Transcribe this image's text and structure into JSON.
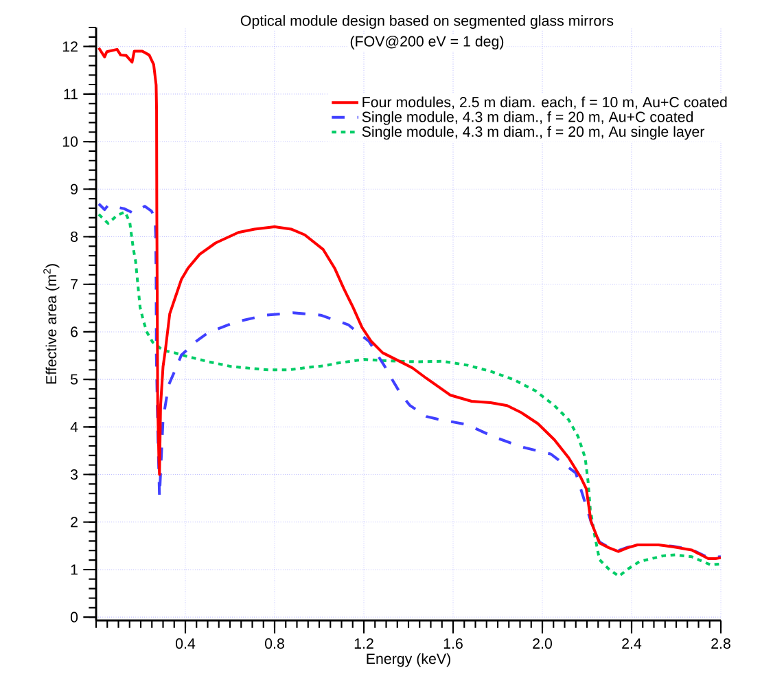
{
  "chart_data": {
    "type": "line",
    "title": "Optical module design based on segmented glass mirrors",
    "subtitle": "(FOV@200 eV = 1 deg)",
    "xlabel": "Energy (keV)",
    "ylabel": "Effective area (m$^{2}$)",
    "xlim": [
      0,
      2.8
    ],
    "ylim": [
      -0.07,
      12.4
    ],
    "xticks": [
      0.4,
      0.8,
      1.2,
      1.6,
      {
        "value": 2,
        "label": "2.0"
      },
      2.4,
      2.8
    ],
    "yticks": [
      0,
      1,
      2,
      3,
      4,
      5,
      6,
      7,
      8,
      9,
      10,
      11,
      12
    ],
    "grid": true,
    "legend": "top right",
    "series": [
      {
        "name": "Four modules, 2.5 m diam. each, f = 10 m,  Au+C coated",
        "color": "#ff0000",
        "line_style": "solid",
        "x": [
          0.012,
          0.038,
          0.048,
          0.094,
          0.11,
          0.135,
          0.161,
          0.171,
          0.207,
          0.238,
          0.258,
          0.269,
          0.271,
          0.272,
          0.274,
          0.276,
          0.281,
          0.284,
          0.289,
          0.3,
          0.31,
          0.33,
          0.382,
          0.412,
          0.464,
          0.536,
          0.638,
          0.71,
          0.8,
          0.874,
          0.935,
          1.018,
          1.069,
          1.11,
          1.151,
          1.192,
          1.233,
          1.284,
          1.356,
          1.418,
          1.481,
          1.587,
          1.683,
          1.768,
          1.842,
          1.906,
          1.98,
          2.054,
          2.118,
          2.171,
          2.197,
          2.218,
          2.256,
          2.298,
          2.341,
          2.383,
          2.426,
          2.521,
          2.585,
          2.67,
          2.744,
          2.776,
          2.8
        ],
        "values": [
          11.97,
          11.78,
          11.89,
          11.94,
          11.82,
          11.81,
          11.67,
          11.9,
          11.9,
          11.82,
          11.62,
          11.19,
          10.66,
          8.54,
          6.62,
          4.5,
          3.4,
          3.0,
          4.45,
          5.27,
          5.6,
          6.38,
          7.1,
          7.34,
          7.63,
          7.87,
          8.09,
          8.16,
          8.21,
          8.16,
          8.04,
          7.73,
          7.34,
          6.91,
          6.52,
          6.09,
          5.8,
          5.56,
          5.39,
          5.24,
          5.02,
          4.67,
          4.54,
          4.51,
          4.45,
          4.3,
          4.07,
          3.73,
          3.35,
          2.95,
          2.7,
          2.01,
          1.56,
          1.46,
          1.38,
          1.46,
          1.52,
          1.52,
          1.48,
          1.41,
          1.23,
          1.23,
          1.25
        ]
      },
      {
        "name": "Single module, 4.3 m diam., f = 20 m, Au+C coated",
        "color": "#4040ff",
        "line_style": "dashed",
        "x": [
          0.012,
          0.038,
          0.054,
          0.125,
          0.166,
          0.218,
          0.248,
          0.264,
          0.267,
          0.269,
          0.27,
          0.276,
          0.284,
          0.3,
          0.325,
          0.361,
          0.382,
          0.454,
          0.505,
          0.628,
          0.761,
          0.884,
          1.007,
          1.13,
          1.223,
          1.294,
          1.32,
          1.366,
          1.407,
          1.481,
          1.534,
          1.662,
          1.778,
          1.906,
          2.038,
          2.15,
          2.218,
          2.256,
          2.298,
          2.341,
          2.383,
          2.426,
          2.521,
          2.585,
          2.67,
          2.744,
          2.8
        ],
        "values": [
          8.69,
          8.57,
          8.66,
          8.59,
          8.5,
          8.64,
          8.54,
          8.4,
          8.06,
          7.1,
          5.5,
          4.0,
          2.53,
          4.16,
          4.88,
          5.27,
          5.51,
          5.82,
          5.99,
          6.21,
          6.35,
          6.4,
          6.35,
          6.15,
          5.8,
          5.27,
          5.05,
          4.69,
          4.45,
          4.22,
          4.16,
          4.05,
          3.8,
          3.58,
          3.43,
          3.03,
          2.01,
          1.58,
          1.47,
          1.4,
          1.47,
          1.52,
          1.52,
          1.49,
          1.42,
          1.25,
          1.27
        ]
      },
      {
        "name": "Single module, 4.3 m diam., f = 20 m, Au single layer",
        "color": "#00cc66",
        "line_style": "dotted",
        "x": [
          0.012,
          0.054,
          0.094,
          0.13,
          0.151,
          0.166,
          0.177,
          0.187,
          0.197,
          0.212,
          0.228,
          0.254,
          0.3,
          0.351,
          0.402,
          0.505,
          0.607,
          0.771,
          0.864,
          0.946,
          1.028,
          1.079,
          1.202,
          1.305,
          1.439,
          1.555,
          1.662,
          1.768,
          1.874,
          1.969,
          2.054,
          2.118,
          2.16,
          2.192,
          2.205,
          2.215,
          2.235,
          2.256,
          2.298,
          2.343,
          2.383,
          2.436,
          2.542,
          2.595,
          2.67,
          2.754,
          2.8
        ],
        "values": [
          8.47,
          8.28,
          8.45,
          8.52,
          8.3,
          7.77,
          7.48,
          7.0,
          6.52,
          6.23,
          5.99,
          5.78,
          5.61,
          5.56,
          5.49,
          5.37,
          5.27,
          5.2,
          5.2,
          5.25,
          5.29,
          5.34,
          5.42,
          5.39,
          5.37,
          5.38,
          5.3,
          5.17,
          4.99,
          4.76,
          4.45,
          4.15,
          3.8,
          3.35,
          2.85,
          2.26,
          1.71,
          1.21,
          1.01,
          0.86,
          1.01,
          1.17,
          1.29,
          1.31,
          1.27,
          1.1,
          1.12
        ]
      }
    ]
  }
}
